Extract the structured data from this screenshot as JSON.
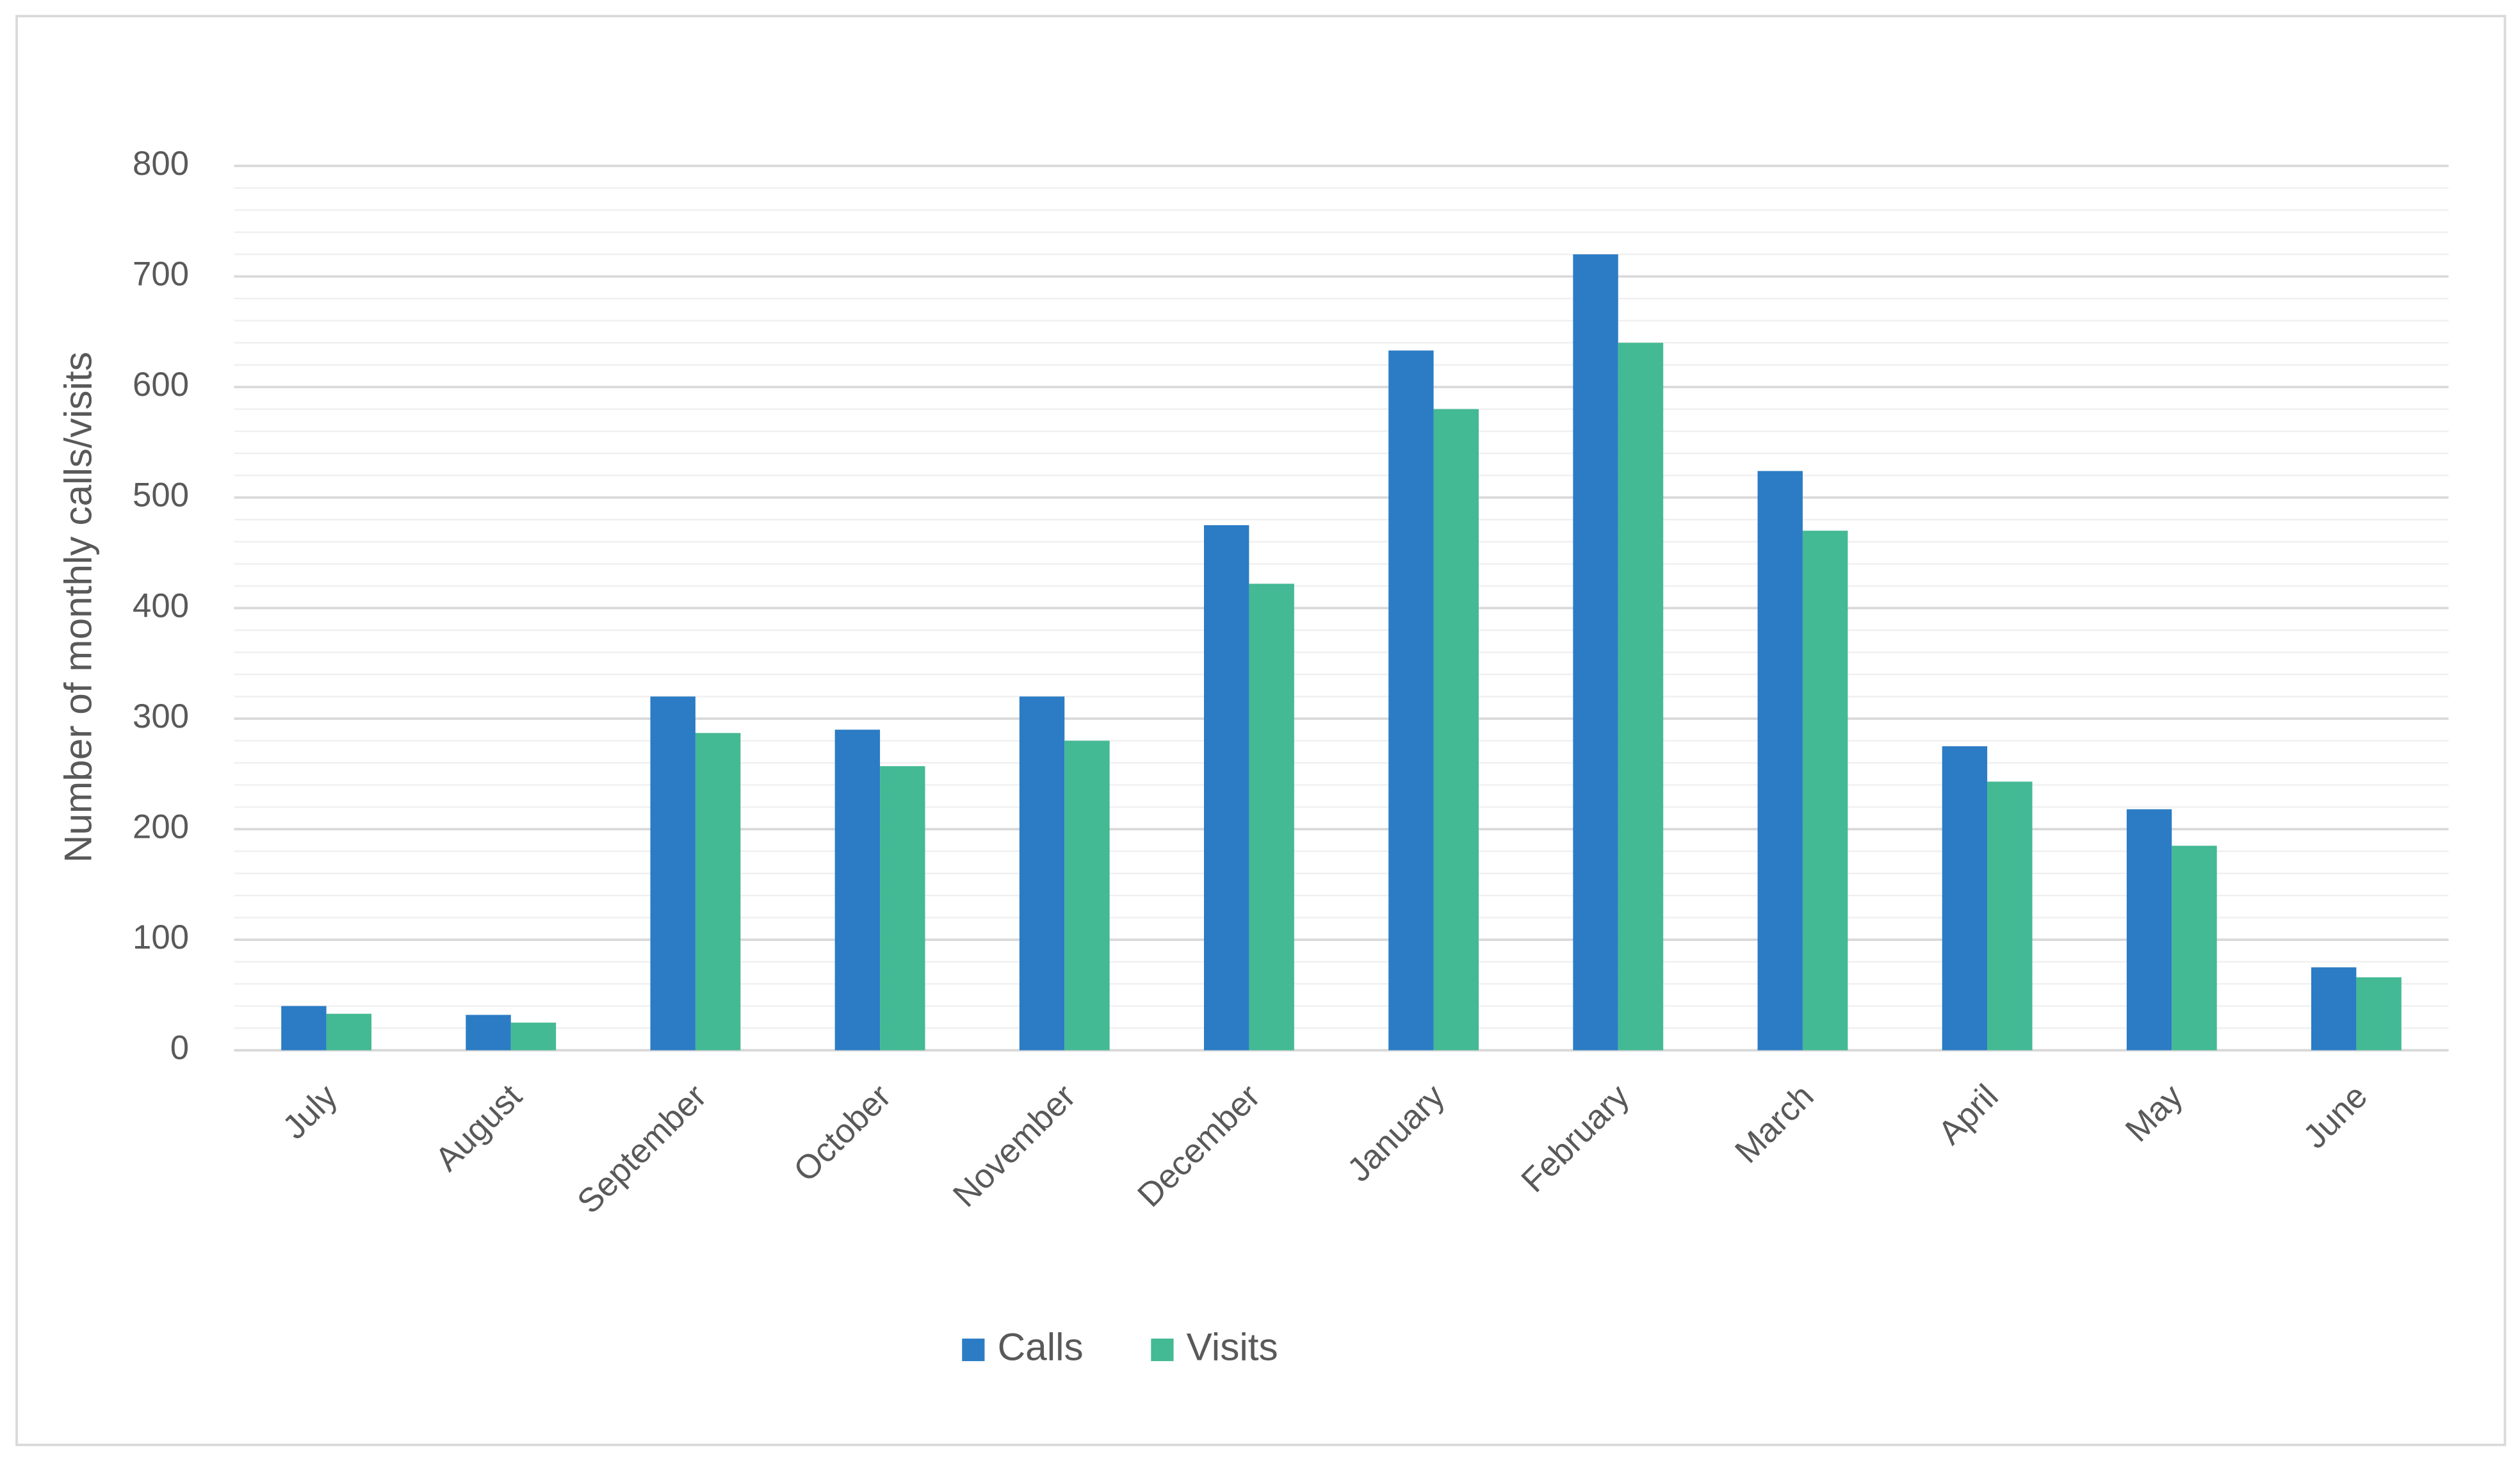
{
  "chart_data": {
    "type": "bar",
    "y_axis_label": "Number of monthly calls/visits",
    "categories": [
      "July",
      "August",
      "September",
      "October",
      "November",
      "December",
      "January",
      "February",
      "March",
      "April",
      "May",
      "June"
    ],
    "series": [
      {
        "name": "Calls",
        "color": "#2b7cc4",
        "values": [
          40,
          32,
          320,
          290,
          320,
          475,
          633,
          720,
          524,
          275,
          218,
          75
        ]
      },
      {
        "name": "Visits",
        "color": "#43b994",
        "values": [
          33,
          25,
          287,
          257,
          280,
          422,
          580,
          640,
          470,
          243,
          185,
          66
        ]
      }
    ],
    "ylim": [
      0,
      800
    ],
    "yticks": [
      0,
      100,
      200,
      300,
      400,
      500,
      600,
      700,
      800
    ],
    "grid": true,
    "minor_grid_step": 20,
    "legend": "bottom"
  }
}
